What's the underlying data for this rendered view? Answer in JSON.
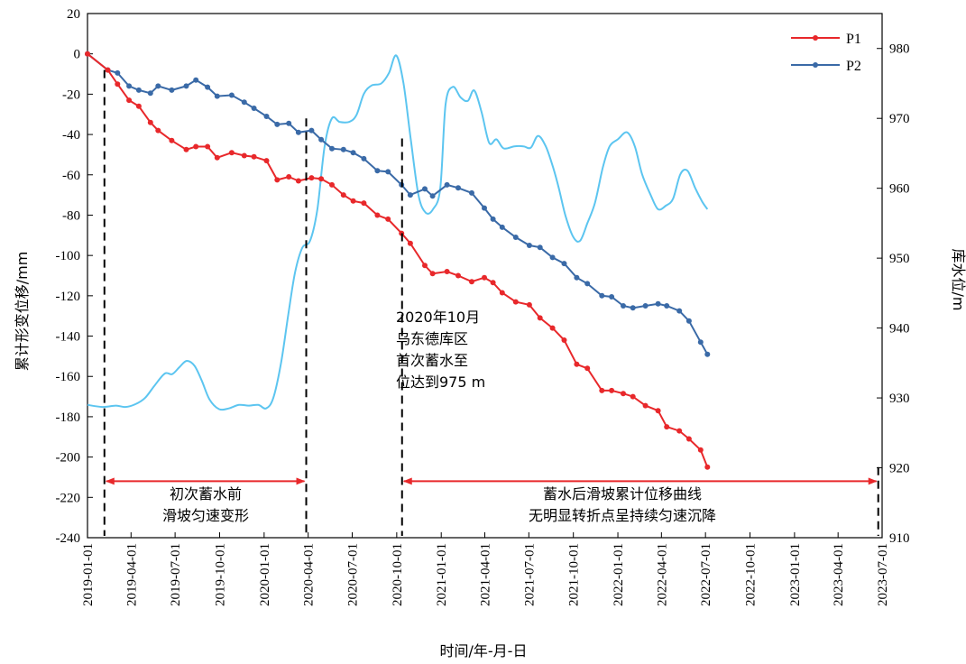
{
  "chart_data": {
    "type": "line",
    "xlabel": "时间/年-月-日",
    "ylabel_left": "累计形变位移/mm",
    "ylabel_right": "库水位/m",
    "ylim_left": [
      -240,
      20
    ],
    "ylim_right": [
      910,
      985
    ],
    "y_ticks_left": [
      20,
      0,
      -20,
      -40,
      -60,
      -80,
      -100,
      -120,
      -140,
      -160,
      -180,
      -200,
      -220,
      -240
    ],
    "y_ticks_right": [
      980,
      970,
      960,
      950,
      940,
      930,
      920,
      910
    ],
    "x_ticks": [
      "2019-01-01",
      "2019-04-01",
      "2019-07-01",
      "2019-10-01",
      "2020-01-01",
      "2020-04-01",
      "2020-07-01",
      "2020-10-01",
      "2021-01-01",
      "2021-04-01",
      "2021-07-01",
      "2021-10-01",
      "2022-01-01",
      "2022-04-01",
      "2022-07-01",
      "2022-10-01",
      "2023-01-01",
      "2023-04-01",
      "2023-07-01"
    ],
    "legend_position": "top-right",
    "series": [
      {
        "name": "P1",
        "color": "#e8282b",
        "axis": "left",
        "marker": "circle",
        "points": [
          [
            "2019-01-01",
            0
          ],
          [
            "2019-02-12",
            -8
          ],
          [
            "2019-03-04",
            -15
          ],
          [
            "2019-03-28",
            -23
          ],
          [
            "2019-04-17",
            -26
          ],
          [
            "2019-05-11",
            -34
          ],
          [
            "2019-05-27",
            -38
          ],
          [
            "2019-06-24",
            -43
          ],
          [
            "2019-07-24",
            -47.5
          ],
          [
            "2019-08-13",
            -46
          ],
          [
            "2019-09-06",
            -46
          ],
          [
            "2019-09-26",
            -51.5
          ],
          [
            "2019-10-26",
            -49
          ],
          [
            "2019-11-21",
            -50.5
          ],
          [
            "2019-12-11",
            -51
          ],
          [
            "2020-01-06",
            -53
          ],
          [
            "2020-01-28",
            -62.5
          ],
          [
            "2020-02-21",
            -61
          ],
          [
            "2020-03-12",
            -63
          ],
          [
            "2020-04-08",
            -61.5
          ],
          [
            "2020-04-28",
            -62
          ],
          [
            "2020-05-20",
            -65
          ],
          [
            "2020-06-13",
            -70
          ],
          [
            "2020-07-03",
            -73
          ],
          [
            "2020-07-25",
            -74
          ],
          [
            "2020-08-22",
            -80
          ],
          [
            "2020-09-13",
            -82
          ],
          [
            "2020-10-11",
            -89
          ],
          [
            "2020-10-29",
            -94
          ],
          [
            "2020-11-28",
            -105
          ],
          [
            "2020-12-14",
            -109
          ],
          [
            "2021-01-13",
            -108
          ],
          [
            "2021-02-05",
            -110
          ],
          [
            "2021-03-05",
            -113
          ],
          [
            "2021-03-31",
            -111
          ],
          [
            "2021-04-18",
            -113.5
          ],
          [
            "2021-05-07",
            -118.5
          ],
          [
            "2021-06-04",
            -123
          ],
          [
            "2021-07-02",
            -124.5
          ],
          [
            "2021-07-24",
            -131
          ],
          [
            "2021-08-19",
            -136
          ],
          [
            "2021-09-12",
            -142
          ],
          [
            "2021-10-08",
            -154
          ],
          [
            "2021-10-30",
            -156
          ],
          [
            "2021-11-29",
            -167
          ],
          [
            "2021-12-19",
            -167
          ],
          [
            "2022-01-12",
            -168.5
          ],
          [
            "2022-02-01",
            -170
          ],
          [
            "2022-02-27",
            -174.5
          ],
          [
            "2022-03-25",
            -177
          ],
          [
            "2022-04-12",
            -185
          ],
          [
            "2022-05-08",
            -187
          ],
          [
            "2022-05-28",
            -191
          ],
          [
            "2022-06-21",
            -196.5
          ],
          [
            "2022-07-05",
            -205
          ]
        ]
      },
      {
        "name": "P2",
        "color": "#3a6aa7",
        "axis": "left",
        "marker": "circle",
        "points": [
          [
            "2019-01-01",
            0
          ],
          [
            "2019-02-12",
            -8
          ],
          [
            "2019-03-04",
            -9.5
          ],
          [
            "2019-03-28",
            -16
          ],
          [
            "2019-04-17",
            -18
          ],
          [
            "2019-05-11",
            -19.5
          ],
          [
            "2019-05-27",
            -16
          ],
          [
            "2019-06-24",
            -18
          ],
          [
            "2019-07-24",
            -16
          ],
          [
            "2019-08-13",
            -13
          ],
          [
            "2019-09-06",
            -16.5
          ],
          [
            "2019-09-26",
            -21
          ],
          [
            "2019-10-26",
            -20.5
          ],
          [
            "2019-11-21",
            -24
          ],
          [
            "2019-12-11",
            -27
          ],
          [
            "2020-01-06",
            -31
          ],
          [
            "2020-01-28",
            -35
          ],
          [
            "2020-02-21",
            -34.5
          ],
          [
            "2020-03-12",
            -39
          ],
          [
            "2020-04-08",
            -38
          ],
          [
            "2020-04-28",
            -42.5
          ],
          [
            "2020-05-20",
            -47
          ],
          [
            "2020-06-13",
            -47.5
          ],
          [
            "2020-07-03",
            -49
          ],
          [
            "2020-07-25",
            -52
          ],
          [
            "2020-08-22",
            -58
          ],
          [
            "2020-09-13",
            -58.5
          ],
          [
            "2020-10-11",
            -65
          ],
          [
            "2020-10-29",
            -70
          ],
          [
            "2020-11-28",
            -67
          ],
          [
            "2020-12-14",
            -70.5
          ],
          [
            "2021-01-13",
            -65
          ],
          [
            "2021-02-05",
            -66.5
          ],
          [
            "2021-03-05",
            -69
          ],
          [
            "2021-03-31",
            -76.5
          ],
          [
            "2021-04-18",
            -82
          ],
          [
            "2021-05-07",
            -86
          ],
          [
            "2021-06-04",
            -91
          ],
          [
            "2021-07-02",
            -95
          ],
          [
            "2021-07-24",
            -96
          ],
          [
            "2021-08-19",
            -101
          ],
          [
            "2021-09-12",
            -104
          ],
          [
            "2021-10-08",
            -111
          ],
          [
            "2021-10-30",
            -114
          ],
          [
            "2021-11-29",
            -120
          ],
          [
            "2021-12-19",
            -120.5
          ],
          [
            "2022-01-12",
            -125
          ],
          [
            "2022-02-01",
            -126
          ],
          [
            "2022-02-27",
            -125
          ],
          [
            "2022-03-25",
            -124
          ],
          [
            "2022-04-12",
            -125
          ],
          [
            "2022-05-08",
            -127.5
          ],
          [
            "2022-05-28",
            -132.5
          ],
          [
            "2022-06-21",
            -143
          ],
          [
            "2022-07-05",
            -149
          ]
        ]
      },
      {
        "name": "",
        "color": "#5cc5f0",
        "axis": "right",
        "marker": "none",
        "points": [
          [
            "2019-01-01",
            929
          ],
          [
            "2019-02-01",
            928.7
          ],
          [
            "2019-03-01",
            928.9
          ],
          [
            "2019-03-20",
            928.7
          ],
          [
            "2019-04-10",
            929.1
          ],
          [
            "2019-04-30",
            930
          ],
          [
            "2019-05-20",
            931.8
          ],
          [
            "2019-06-10",
            933.5
          ],
          [
            "2019-06-25",
            933.4
          ],
          [
            "2019-07-10",
            934.4
          ],
          [
            "2019-07-25",
            935.3
          ],
          [
            "2019-08-10",
            934.6
          ],
          [
            "2019-08-25",
            932.5
          ],
          [
            "2019-09-10",
            929.8
          ],
          [
            "2019-09-30",
            928.4
          ],
          [
            "2019-10-20",
            928.5
          ],
          [
            "2019-11-10",
            929
          ],
          [
            "2019-11-30",
            928.9
          ],
          [
            "2019-12-20",
            929
          ],
          [
            "2020-01-05",
            928.5
          ],
          [
            "2020-01-20",
            930
          ],
          [
            "2020-02-05",
            935
          ],
          [
            "2020-02-20",
            942
          ],
          [
            "2020-03-05",
            948
          ],
          [
            "2020-03-20",
            951.5
          ],
          [
            "2020-04-05",
            952.5
          ],
          [
            "2020-04-20",
            957
          ],
          [
            "2020-05-05",
            966
          ],
          [
            "2020-05-20",
            970
          ],
          [
            "2020-06-05",
            969.5
          ],
          [
            "2020-06-25",
            969.5
          ],
          [
            "2020-07-10",
            970.5
          ],
          [
            "2020-07-25",
            973.5
          ],
          [
            "2020-08-10",
            974.7
          ],
          [
            "2020-08-30",
            975
          ],
          [
            "2020-09-15",
            976.5
          ],
          [
            "2020-09-30",
            979
          ],
          [
            "2020-10-15",
            975
          ],
          [
            "2020-10-30",
            967
          ],
          [
            "2020-11-15",
            959
          ],
          [
            "2020-11-30",
            956.5
          ],
          [
            "2020-12-15",
            957
          ],
          [
            "2020-12-30",
            960
          ],
          [
            "2021-01-10",
            972
          ],
          [
            "2021-01-25",
            974.5
          ],
          [
            "2021-02-10",
            973
          ],
          [
            "2021-02-25",
            972.5
          ],
          [
            "2021-03-10",
            974
          ],
          [
            "2021-03-25",
            971
          ],
          [
            "2021-04-10",
            966.5
          ],
          [
            "2021-04-25",
            967
          ],
          [
            "2021-05-10",
            965.7
          ],
          [
            "2021-06-01",
            966
          ],
          [
            "2021-06-20",
            966
          ],
          [
            "2021-07-05",
            965.8
          ],
          [
            "2021-07-20",
            967.5
          ],
          [
            "2021-08-05",
            966
          ],
          [
            "2021-08-20",
            963
          ],
          [
            "2021-09-01",
            960
          ],
          [
            "2021-09-15",
            956
          ],
          [
            "2021-10-01",
            953
          ],
          [
            "2021-10-15",
            952.5
          ],
          [
            "2021-10-30",
            955
          ],
          [
            "2021-11-15",
            958
          ],
          [
            "2021-12-01",
            963
          ],
          [
            "2021-12-15",
            966
          ],
          [
            "2022-01-01",
            967
          ],
          [
            "2022-01-20",
            968
          ],
          [
            "2022-02-05",
            966
          ],
          [
            "2022-02-20",
            962
          ],
          [
            "2022-03-10",
            959
          ],
          [
            "2022-03-25",
            957
          ],
          [
            "2022-04-10",
            957.5
          ],
          [
            "2022-04-25",
            958.5
          ],
          [
            "2022-05-10",
            962
          ],
          [
            "2022-05-25",
            962.5
          ],
          [
            "2022-06-10",
            960
          ],
          [
            "2022-06-25",
            958
          ],
          [
            "2022-07-05",
            957
          ]
        ]
      }
    ],
    "annotations": {
      "impoundment_note": [
        "2020年10月",
        "乌东德库区",
        "首次蓄水至",
        "位达到975 m"
      ],
      "before_label": [
        "初次蓄水前",
        "滑坡匀速变形"
      ],
      "after_label": [
        "蓄水后滑坡累计位移曲线",
        "无明显转折点呈持续匀速沉降"
      ],
      "vlines": [
        "2019-02-05",
        "2020-03-28",
        "2020-10-12",
        "2023-06-23"
      ]
    }
  }
}
